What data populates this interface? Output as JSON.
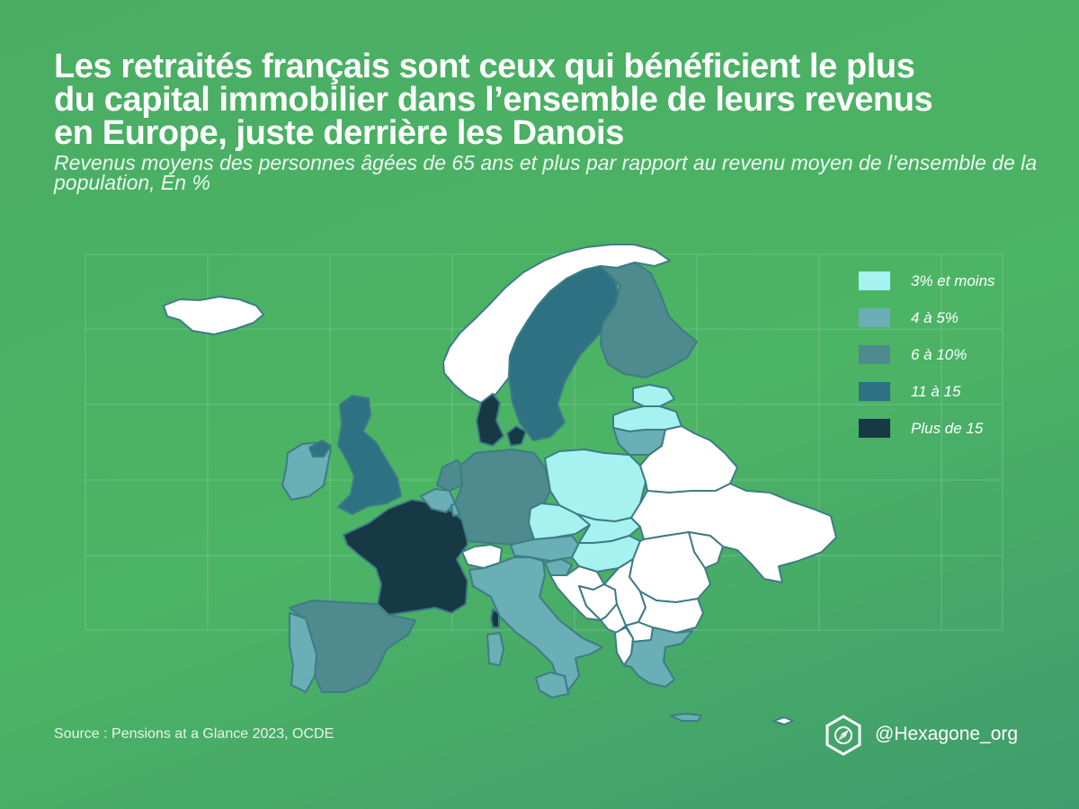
{
  "title": "Les retraités français sont ceux qui bénéficient le plus du capital immobilier dans l’ensemble de leurs revenus en Europe, juste derrière les Danois",
  "subtitle": "Revenus moyens des personnes âgées de 65 ans et plus par rapport au revenu moyen de l’ensemble de la population, En %",
  "legend": [
    {
      "label": "3% et moins",
      "color": "#a6f2f0"
    },
    {
      "label": "4 à 5%",
      "color": "#6aaeb6"
    },
    {
      "label": "6 à 10%",
      "color": "#4e8a8e"
    },
    {
      "label": "11 à 15",
      "color": "#2d7183"
    },
    {
      "label": "Plus de 15",
      "color": "#173845"
    }
  ],
  "no_data_color": "#ffffff",
  "border_color": "#3e7c86",
  "countries": [
    {
      "name": "Iceland",
      "category": "none"
    },
    {
      "name": "Norway",
      "category": "none"
    },
    {
      "name": "Sweden",
      "category": "11 à 15"
    },
    {
      "name": "Finland",
      "category": "6 à 10%"
    },
    {
      "name": "Denmark",
      "category": "Plus de 15"
    },
    {
      "name": "Ireland",
      "category": "4 à 5%"
    },
    {
      "name": "United Kingdom",
      "category": "11 à 15"
    },
    {
      "name": "France",
      "category": "Plus de 15"
    },
    {
      "name": "Spain",
      "category": "6 à 10%"
    },
    {
      "name": "Portugal",
      "category": "4 à 5%"
    },
    {
      "name": "Belgium",
      "category": "4 à 5%"
    },
    {
      "name": "Netherlands",
      "category": "6 à 10%"
    },
    {
      "name": "Luxembourg",
      "category": "4 à 5%"
    },
    {
      "name": "Germany",
      "category": "6 à 10%"
    },
    {
      "name": "Switzerland",
      "category": "none"
    },
    {
      "name": "Italy",
      "category": "4 à 5%"
    },
    {
      "name": "Austria",
      "category": "4 à 5%"
    },
    {
      "name": "Slovenia",
      "category": "4 à 5%"
    },
    {
      "name": "Czechia",
      "category": "3% et moins"
    },
    {
      "name": "Poland",
      "category": "3% et moins"
    },
    {
      "name": "Slovakia",
      "category": "3% et moins"
    },
    {
      "name": "Hungary",
      "category": "3% et moins"
    },
    {
      "name": "Estonia",
      "category": "3% et moins"
    },
    {
      "name": "Latvia",
      "category": "3% et moins"
    },
    {
      "name": "Lithuania",
      "category": "4 à 5%"
    },
    {
      "name": "Greece",
      "category": "4 à 5%"
    },
    {
      "name": "Croatia",
      "category": "none"
    },
    {
      "name": "Bosnia",
      "category": "none"
    },
    {
      "name": "Serbia",
      "category": "none"
    },
    {
      "name": "Montenegro",
      "category": "none"
    },
    {
      "name": "Albania",
      "category": "none"
    },
    {
      "name": "North Macedonia",
      "category": "none"
    },
    {
      "name": "Bulgaria",
      "category": "none"
    },
    {
      "name": "Romania",
      "category": "none"
    },
    {
      "name": "Moldova",
      "category": "none"
    },
    {
      "name": "Ukraine",
      "category": "none"
    },
    {
      "name": "Belarus",
      "category": "none"
    },
    {
      "name": "Cyprus",
      "category": "none"
    }
  ],
  "source": "Source : Pensions at a Glance 2023, OCDE",
  "brand": {
    "handle": "@Hexagone_org",
    "logo_icon": "hexagon-compass-icon"
  }
}
